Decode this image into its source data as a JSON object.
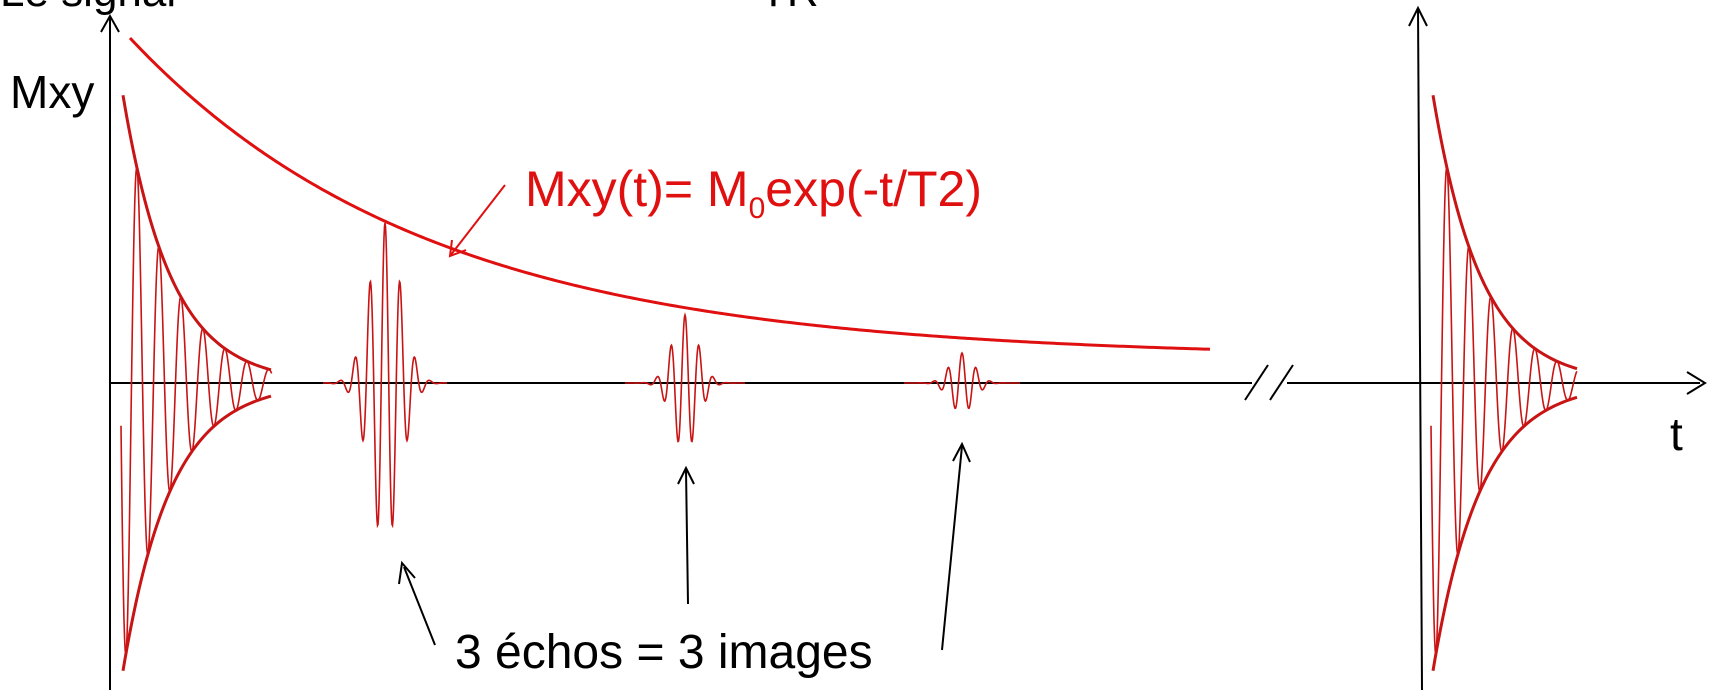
{
  "labels": {
    "top_left_partial": "Le signal",
    "top_center_partial": "TR",
    "y_axis": "Mxy",
    "x_axis": "t",
    "formula_prefix": "Mxy(t)= M",
    "formula_subscript": "0",
    "formula_suffix": "exp(-t/T2)",
    "echoes_caption": "3 échos = 3 images"
  },
  "colors": {
    "axis": "#000000",
    "envelope": "#e01010",
    "fid": "#c81414",
    "formula": "#e01010",
    "text": "#000000"
  }
}
